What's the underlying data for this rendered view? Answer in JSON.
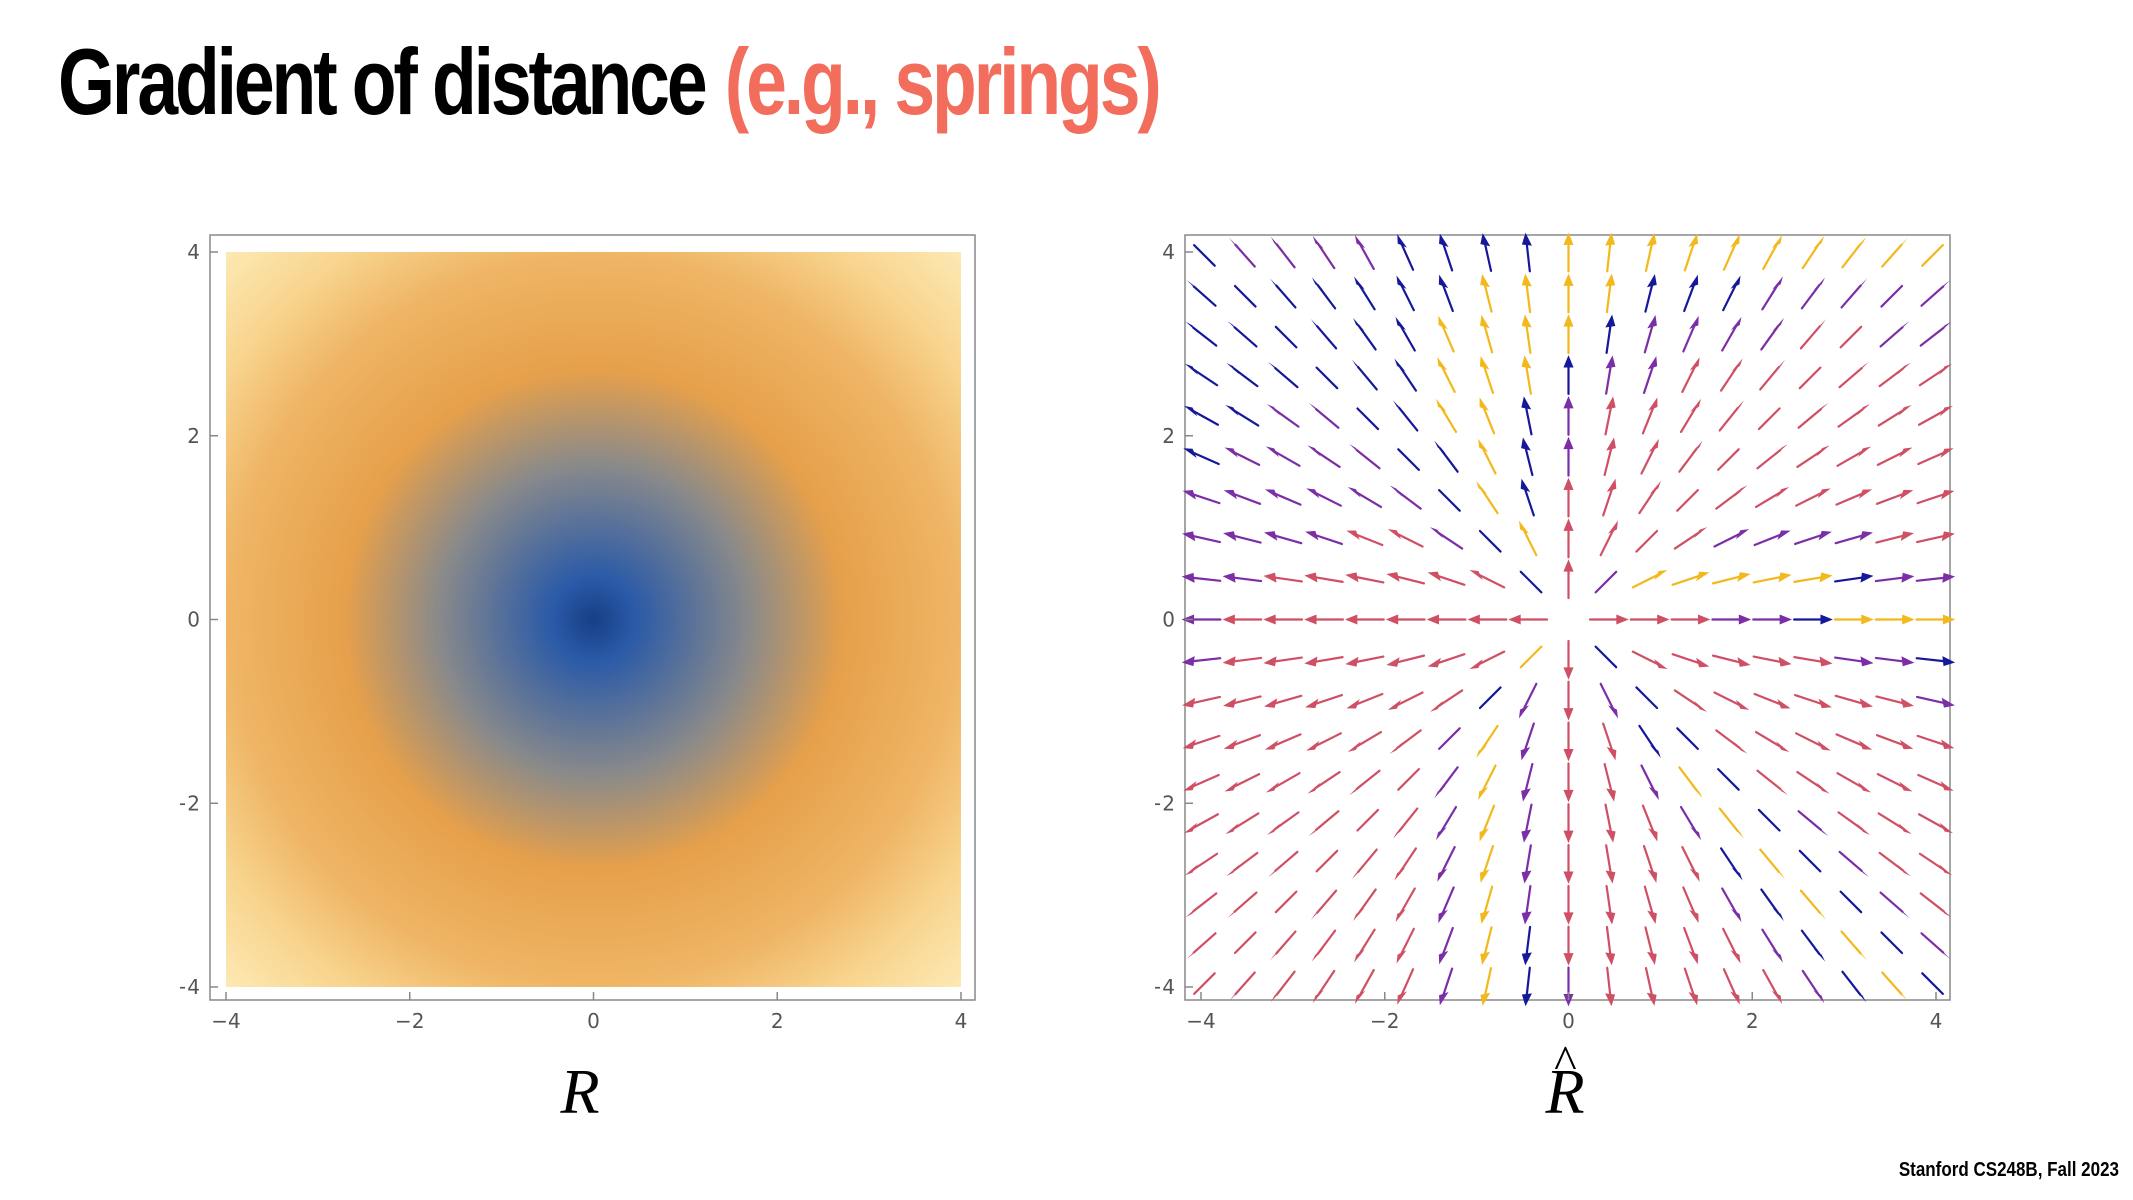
{
  "slide": {
    "title": "Gradient of distance",
    "title_aside": "(e.g., springs)",
    "footer": "Stanford CS248B, Fall 2023"
  },
  "colors": {
    "title": "#000000",
    "title_aside": "#f26d5b",
    "density_center": "#2a5aa8",
    "density_mid": "#e8a04a",
    "density_edge": "#fde7b0",
    "arrow_main": "#cf4f64",
    "arrow_purple": "#7b2ea6",
    "arrow_blue": "#16189a",
    "arrow_yellow": "#f2b81c"
  },
  "chart_data": [
    {
      "type": "heatmap",
      "title": "",
      "caption": "R",
      "function": "distance from origin sqrt(x^2 + y^2)",
      "xlim": [
        -4,
        4
      ],
      "ylim": [
        -4,
        4
      ],
      "x_ticks": [
        "−4",
        "−2",
        "0",
        "2",
        "4"
      ],
      "y_ticks": [
        "4",
        "2",
        "0",
        "−2",
        "−4"
      ],
      "colormap": [
        "#2a5aa8",
        "#e8a04a",
        "#fde7b0"
      ],
      "grid": false
    },
    {
      "type": "vector_field",
      "title": "",
      "caption": "R̂",
      "caption_letter": "R",
      "caption_accent": "^",
      "function": "unit vector (x, y) / sqrt(x^2 + y^2), pointing away from origin",
      "xlim": [
        -4,
        4
      ],
      "ylim": [
        -4,
        4
      ],
      "samples_per_axis": 19,
      "x_ticks": [
        "−4",
        "−2",
        "0",
        "2",
        "4"
      ],
      "y_ticks": [
        "4",
        "2",
        "0",
        "−2",
        "−4"
      ],
      "grid": false
    }
  ]
}
